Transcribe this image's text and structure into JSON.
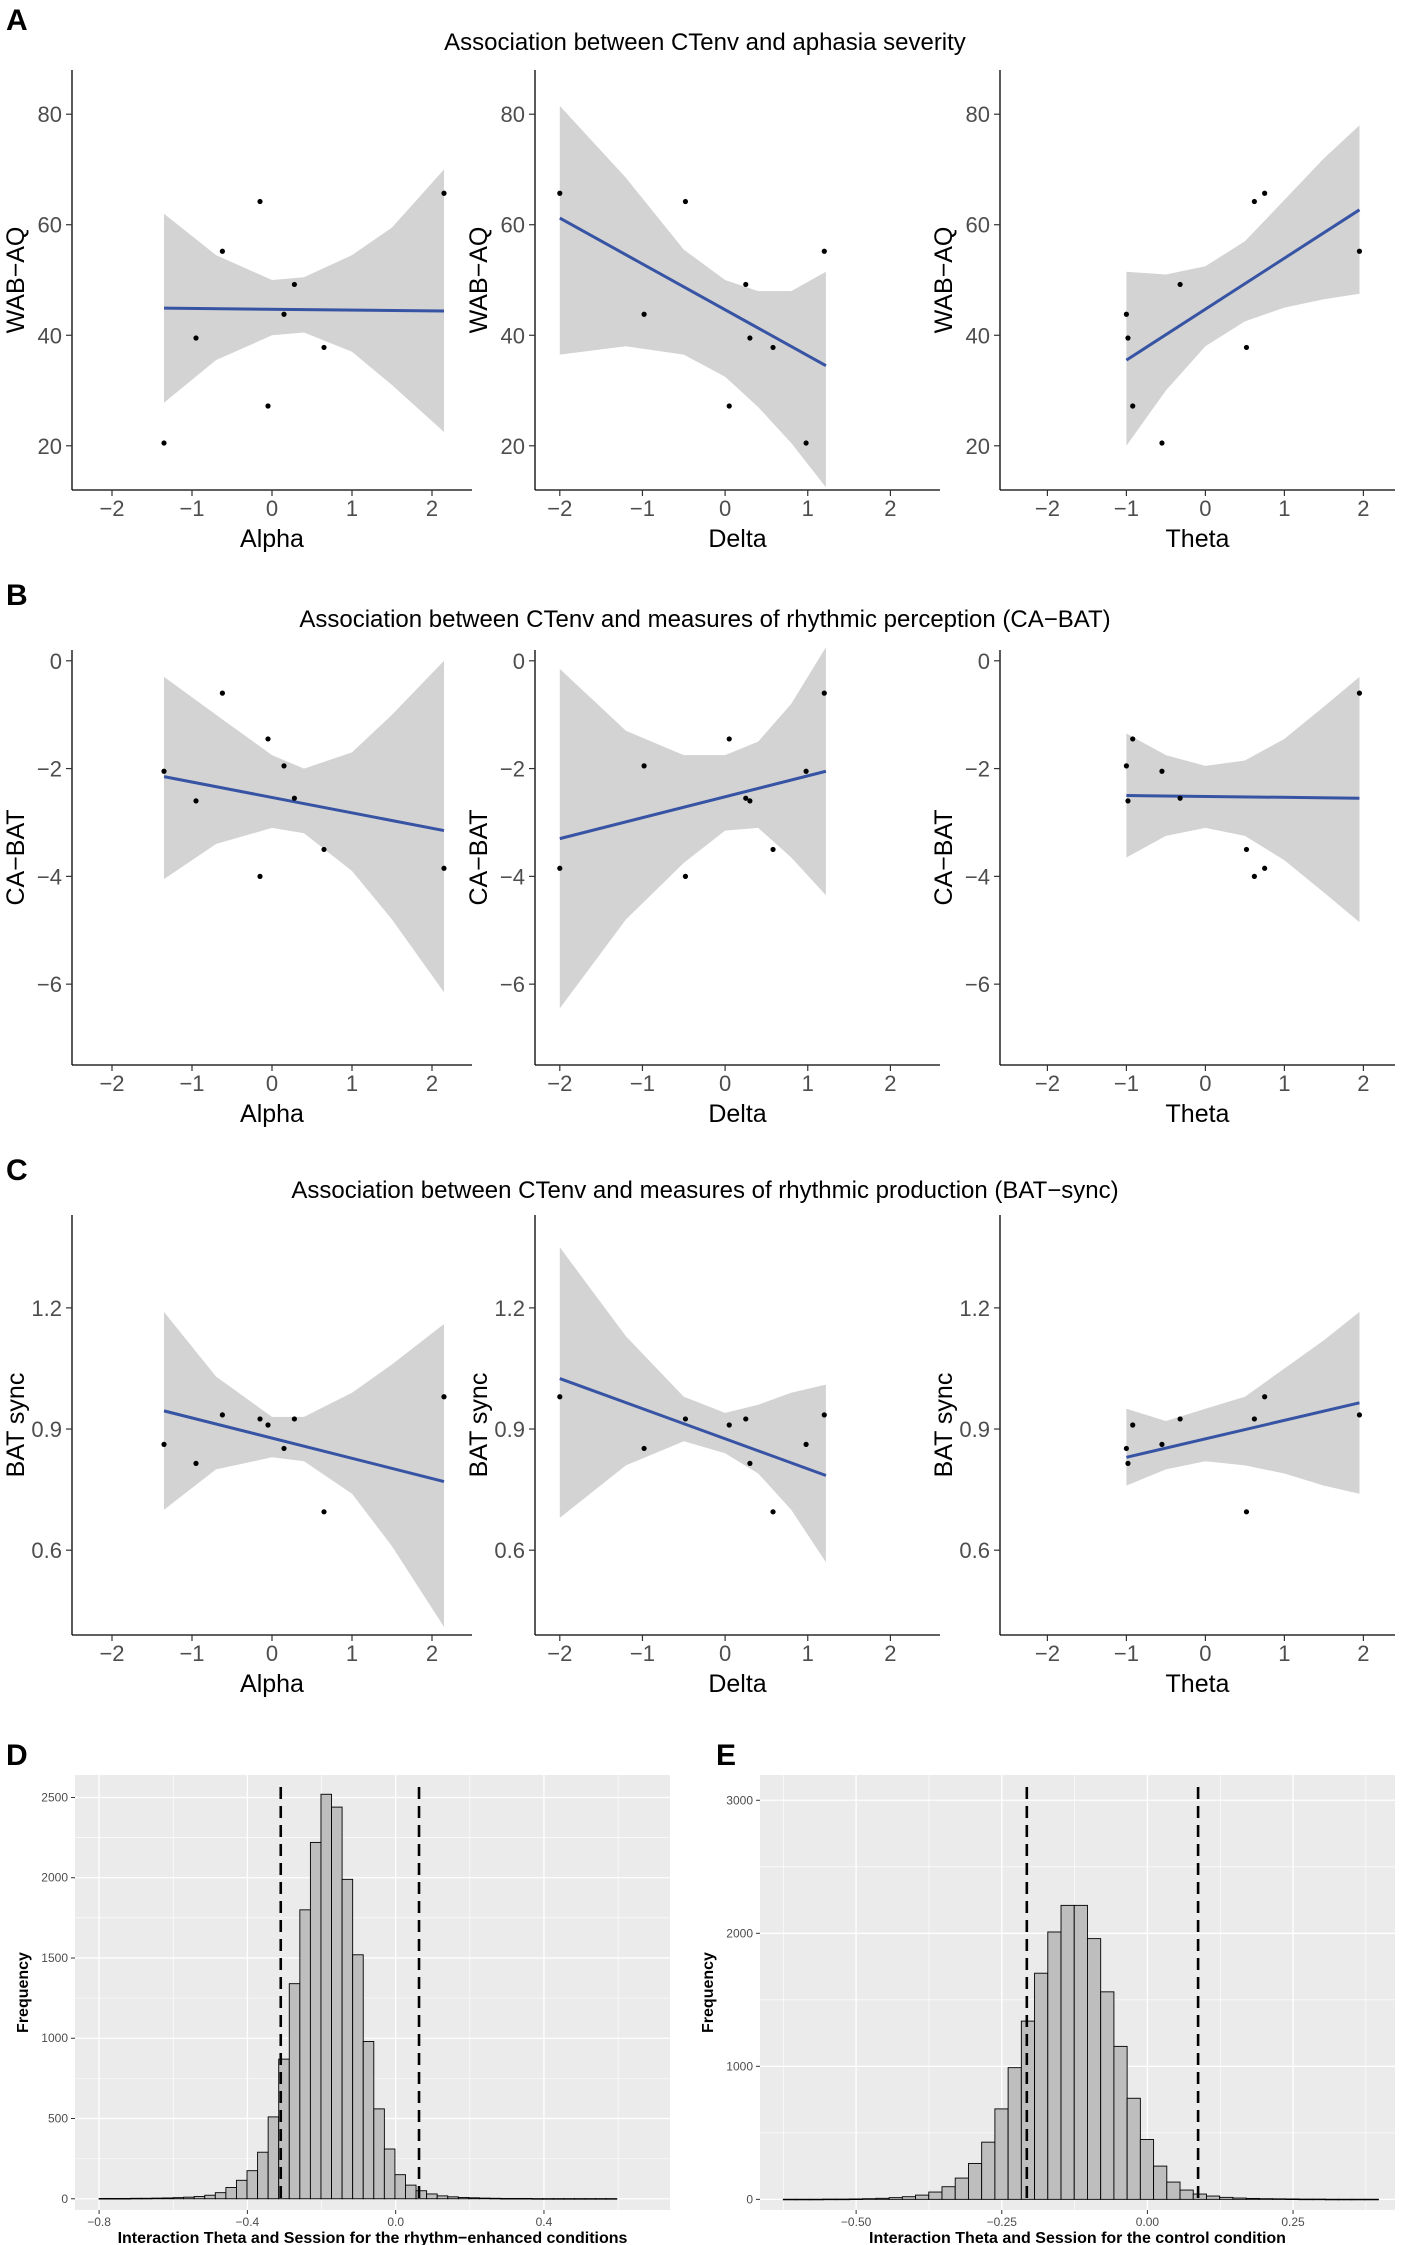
{
  "figure": {
    "rows": [
      {
        "letter": "A",
        "title": "Association between CTenv and aphasia severity"
      },
      {
        "letter": "B",
        "title": "Association between CTenv and measures of rhythmic perception (CA−BAT)"
      },
      {
        "letter": "C",
        "title": "Association between CTenv and measures of rhythmic production (BAT−sync)"
      }
    ],
    "hist_letters": [
      "D",
      "E"
    ]
  },
  "colors": {
    "fit_line": "#3753a4",
    "ci_band": "#d3d3d3",
    "point": "#000000",
    "hist_bg": "#ebebeb",
    "hist_grid": "#ffffff",
    "bar_fill": "#bebebe",
    "bar_stroke": "#000000"
  },
  "chart_data": [
    {
      "id": "A1",
      "type": "scatter",
      "row": "A",
      "xlabel": "Alpha",
      "ylabel": "WAB−AQ",
      "xlim": [
        -2.5,
        2.5
      ],
      "ylim": [
        12,
        88
      ],
      "xticks": [
        -2,
        -1,
        0,
        1,
        2
      ],
      "xtick_labels": [
        "−2",
        "−1",
        "0",
        "1",
        "2"
      ],
      "yticks": [
        20,
        40,
        60,
        80
      ],
      "ytick_labels": [
        "20",
        "40",
        "60",
        "80"
      ],
      "points": [
        [
          -1.35,
          20.5
        ],
        [
          -0.95,
          39.5
        ],
        [
          -0.62,
          55.2
        ],
        [
          -0.15,
          64.2
        ],
        [
          -0.05,
          27.2
        ],
        [
          0.15,
          43.8
        ],
        [
          0.28,
          49.2
        ],
        [
          0.65,
          37.8
        ],
        [
          2.15,
          65.7
        ]
      ],
      "fit": [
        [
          -1.35,
          44.9
        ],
        [
          2.15,
          44.4
        ]
      ],
      "ci": {
        "x": [
          -1.35,
          -0.7,
          0.0,
          0.4,
          1.0,
          1.5,
          2.15
        ],
        "lower": [
          27.8,
          35.5,
          40.0,
          40.5,
          37.0,
          31.0,
          22.5
        ],
        "upper": [
          62.0,
          54.5,
          50.0,
          50.5,
          54.5,
          59.5,
          70.0
        ]
      }
    },
    {
      "id": "A2",
      "type": "scatter",
      "row": "A",
      "xlabel": "Delta",
      "ylabel": "WAB−AQ",
      "xlim": [
        -2.3,
        2.6
      ],
      "ylim": [
        12,
        88
      ],
      "xticks": [
        -2,
        -1,
        0,
        1,
        2
      ],
      "xtick_labels": [
        "−2",
        "−1",
        "0",
        "1",
        "2"
      ],
      "yticks": [
        20,
        40,
        60,
        80
      ],
      "ytick_labels": [
        "20",
        "40",
        "60",
        "80"
      ],
      "points": [
        [
          -2.0,
          65.7
        ],
        [
          -0.98,
          43.8
        ],
        [
          -0.48,
          64.2
        ],
        [
          0.05,
          27.2
        ],
        [
          0.25,
          49.2
        ],
        [
          0.3,
          39.5
        ],
        [
          0.58,
          37.8
        ],
        [
          0.98,
          20.5
        ],
        [
          1.2,
          55.2
        ]
      ],
      "fit": [
        [
          -2.0,
          61.2
        ],
        [
          1.22,
          34.5
        ]
      ],
      "ci": {
        "x": [
          -2.0,
          -1.2,
          -0.5,
          0.0,
          0.4,
          0.8,
          1.22
        ],
        "lower": [
          36.5,
          38.0,
          36.5,
          32.5,
          27.0,
          20.5,
          12.5
        ],
        "upper": [
          81.5,
          68.5,
          55.5,
          50.0,
          48.0,
          48.0,
          51.5
        ]
      }
    },
    {
      "id": "A3",
      "type": "scatter",
      "row": "A",
      "xlabel": "Theta",
      "ylabel": "WAB−AQ",
      "xlim": [
        -2.6,
        2.4
      ],
      "ylim": [
        12,
        88
      ],
      "xticks": [
        -2,
        -1,
        0,
        1,
        2
      ],
      "xtick_labels": [
        "−2",
        "−1",
        "0",
        "1",
        "2"
      ],
      "yticks": [
        20,
        40,
        60,
        80
      ],
      "ytick_labels": [
        "20",
        "40",
        "60",
        "80"
      ],
      "points": [
        [
          -1.0,
          43.8
        ],
        [
          -0.98,
          39.5
        ],
        [
          -0.92,
          27.2
        ],
        [
          -0.55,
          20.5
        ],
        [
          -0.32,
          49.2
        ],
        [
          0.52,
          37.8
        ],
        [
          0.62,
          64.2
        ],
        [
          0.75,
          65.7
        ],
        [
          1.95,
          55.2
        ]
      ],
      "fit": [
        [
          -1.0,
          35.5
        ],
        [
          1.95,
          62.7
        ]
      ],
      "ci": {
        "x": [
          -1.0,
          -0.5,
          0.0,
          0.5,
          1.0,
          1.5,
          1.95
        ],
        "lower": [
          20.0,
          30.0,
          38.0,
          42.5,
          45.0,
          46.5,
          47.5
        ],
        "upper": [
          51.5,
          51.0,
          52.5,
          57.0,
          64.5,
          72.0,
          78.0
        ]
      }
    },
    {
      "id": "B1",
      "type": "scatter",
      "row": "B",
      "xlabel": "Alpha",
      "ylabel": "CA−BAT",
      "xlim": [
        -2.5,
        2.5
      ],
      "ylim": [
        -7.5,
        0.2
      ],
      "xticks": [
        -2,
        -1,
        0,
        1,
        2
      ],
      "xtick_labels": [
        "−2",
        "−1",
        "0",
        "1",
        "2"
      ],
      "yticks": [
        -6,
        -4,
        -2,
        0
      ],
      "ytick_labels": [
        "−6",
        "−4",
        "−2",
        "0"
      ],
      "points": [
        [
          -1.35,
          -2.05
        ],
        [
          -0.95,
          -2.6
        ],
        [
          -0.62,
          -0.6
        ],
        [
          -0.15,
          -4.0
        ],
        [
          -0.05,
          -1.45
        ],
        [
          0.15,
          -1.95
        ],
        [
          0.28,
          -2.55
        ],
        [
          0.65,
          -3.5
        ],
        [
          2.15,
          -3.85
        ]
      ],
      "fit": [
        [
          -1.35,
          -2.15
        ],
        [
          2.15,
          -3.15
        ]
      ],
      "ci": {
        "x": [
          -1.35,
          -0.7,
          0.0,
          0.4,
          1.0,
          1.5,
          2.15
        ],
        "lower": [
          -4.05,
          -3.4,
          -3.1,
          -3.2,
          -3.9,
          -4.8,
          -6.15
        ],
        "upper": [
          -0.3,
          -1.0,
          -1.75,
          -2.0,
          -1.7,
          -1.0,
          0.0
        ]
      }
    },
    {
      "id": "B2",
      "type": "scatter",
      "row": "B",
      "xlabel": "Delta",
      "ylabel": "CA−BAT",
      "xlim": [
        -2.3,
        2.6
      ],
      "ylim": [
        -7.5,
        0.2
      ],
      "xticks": [
        -2,
        -1,
        0,
        1,
        2
      ],
      "xtick_labels": [
        "−2",
        "−1",
        "0",
        "1",
        "2"
      ],
      "yticks": [
        -6,
        -4,
        -2,
        0
      ],
      "ytick_labels": [
        "−6",
        "−4",
        "−2",
        "0"
      ],
      "points": [
        [
          -2.0,
          -3.85
        ],
        [
          -0.98,
          -1.95
        ],
        [
          -0.48,
          -4.0
        ],
        [
          0.05,
          -1.45
        ],
        [
          0.25,
          -2.55
        ],
        [
          0.3,
          -2.6
        ],
        [
          0.58,
          -3.5
        ],
        [
          0.98,
          -2.05
        ],
        [
          1.2,
          -0.6
        ]
      ],
      "fit": [
        [
          -2.0,
          -3.3
        ],
        [
          1.22,
          -2.05
        ]
      ],
      "ci": {
        "x": [
          -2.0,
          -1.2,
          -0.5,
          0.0,
          0.4,
          0.8,
          1.22
        ],
        "lower": [
          -6.45,
          -4.8,
          -3.75,
          -3.15,
          -3.1,
          -3.65,
          -4.35
        ],
        "upper": [
          -0.15,
          -1.3,
          -1.75,
          -1.75,
          -1.5,
          -0.8,
          0.25
        ]
      }
    },
    {
      "id": "B3",
      "type": "scatter",
      "row": "B",
      "xlabel": "Theta",
      "ylabel": "CA−BAT",
      "xlim": [
        -2.6,
        2.4
      ],
      "ylim": [
        -7.5,
        0.2
      ],
      "xticks": [
        -2,
        -1,
        0,
        1,
        2
      ],
      "xtick_labels": [
        "−2",
        "−1",
        "0",
        "1",
        "2"
      ],
      "yticks": [
        -6,
        -4,
        -2,
        0
      ],
      "ytick_labels": [
        "−6",
        "−4",
        "−2",
        "0"
      ],
      "points": [
        [
          -1.0,
          -1.95
        ],
        [
          -0.98,
          -2.6
        ],
        [
          -0.92,
          -1.45
        ],
        [
          -0.55,
          -2.05
        ],
        [
          -0.32,
          -2.55
        ],
        [
          0.52,
          -3.5
        ],
        [
          0.62,
          -4.0
        ],
        [
          0.75,
          -3.85
        ],
        [
          1.95,
          -0.6
        ]
      ],
      "fit": [
        [
          -1.0,
          -2.5
        ],
        [
          1.95,
          -2.55
        ]
      ],
      "ci": {
        "x": [
          -1.0,
          -0.5,
          0.0,
          0.5,
          1.0,
          1.5,
          1.95
        ],
        "lower": [
          -3.65,
          -3.25,
          -3.1,
          -3.25,
          -3.7,
          -4.3,
          -4.85
        ],
        "upper": [
          -1.35,
          -1.75,
          -1.95,
          -1.85,
          -1.45,
          -0.85,
          -0.3
        ]
      }
    },
    {
      "id": "C1",
      "type": "scatter",
      "row": "C",
      "xlabel": "Alpha",
      "ylabel": "BAT sync",
      "xlim": [
        -2.5,
        2.5
      ],
      "ylim": [
        0.39,
        1.43
      ],
      "xticks": [
        -2,
        -1,
        0,
        1,
        2
      ],
      "xtick_labels": [
        "−2",
        "−1",
        "0",
        "1",
        "2"
      ],
      "yticks": [
        0.6,
        0.9,
        1.2
      ],
      "ytick_labels": [
        "0.6",
        "0.9",
        "1.2"
      ],
      "points": [
        [
          -1.35,
          0.862
        ],
        [
          -0.95,
          0.815
        ],
        [
          -0.62,
          0.935
        ],
        [
          -0.15,
          0.925
        ],
        [
          -0.05,
          0.91
        ],
        [
          0.15,
          0.852
        ],
        [
          0.28,
          0.925
        ],
        [
          0.65,
          0.695
        ],
        [
          2.15,
          0.98
        ]
      ],
      "fit": [
        [
          -1.35,
          0.945
        ],
        [
          2.15,
          0.77
        ]
      ],
      "ci": {
        "x": [
          -1.35,
          -0.7,
          0.0,
          0.4,
          1.0,
          1.5,
          2.15
        ],
        "lower": [
          0.7,
          0.8,
          0.83,
          0.82,
          0.74,
          0.61,
          0.41
        ],
        "upper": [
          1.19,
          1.03,
          0.93,
          0.93,
          0.99,
          1.06,
          1.16
        ]
      }
    },
    {
      "id": "C2",
      "type": "scatter",
      "row": "C",
      "xlabel": "Delta",
      "ylabel": "BAT sync",
      "xlim": [
        -2.3,
        2.6
      ],
      "ylim": [
        0.39,
        1.43
      ],
      "xticks": [
        -2,
        -1,
        0,
        1,
        2
      ],
      "xtick_labels": [
        "−2",
        "−1",
        "0",
        "1",
        "2"
      ],
      "yticks": [
        0.6,
        0.9,
        1.2
      ],
      "ytick_labels": [
        "0.6",
        "0.9",
        "1.2"
      ],
      "points": [
        [
          -2.0,
          0.98
        ],
        [
          -0.98,
          0.852
        ],
        [
          -0.48,
          0.925
        ],
        [
          0.05,
          0.91
        ],
        [
          0.25,
          0.925
        ],
        [
          0.3,
          0.815
        ],
        [
          0.58,
          0.695
        ],
        [
          0.98,
          0.862
        ],
        [
          1.2,
          0.935
        ]
      ],
      "fit": [
        [
          -2.0,
          1.025
        ],
        [
          1.22,
          0.785
        ]
      ],
      "ci": {
        "x": [
          -2.0,
          -1.2,
          -0.5,
          0.0,
          0.4,
          0.8,
          1.22
        ],
        "lower": [
          0.68,
          0.81,
          0.87,
          0.84,
          0.79,
          0.7,
          0.57
        ],
        "upper": [
          1.35,
          1.13,
          0.98,
          0.94,
          0.96,
          0.99,
          1.01
        ]
      }
    },
    {
      "id": "C3",
      "type": "scatter",
      "row": "C",
      "xlabel": "Theta",
      "ylabel": "BAT sync",
      "xlim": [
        -2.6,
        2.4
      ],
      "ylim": [
        0.39,
        1.43
      ],
      "xticks": [
        -2,
        -1,
        0,
        1,
        2
      ],
      "xtick_labels": [
        "−2",
        "−1",
        "0",
        "1",
        "2"
      ],
      "yticks": [
        0.6,
        0.9,
        1.2
      ],
      "ytick_labels": [
        "0.6",
        "0.9",
        "1.2"
      ],
      "points": [
        [
          -1.0,
          0.852
        ],
        [
          -0.98,
          0.815
        ],
        [
          -0.92,
          0.91
        ],
        [
          -0.55,
          0.862
        ],
        [
          -0.32,
          0.925
        ],
        [
          0.52,
          0.695
        ],
        [
          0.62,
          0.925
        ],
        [
          0.75,
          0.98
        ],
        [
          1.95,
          0.935
        ]
      ],
      "fit": [
        [
          -1.0,
          0.83
        ],
        [
          1.95,
          0.965
        ]
      ],
      "ci": {
        "x": [
          -1.0,
          -0.5,
          0.0,
          0.5,
          1.0,
          1.5,
          1.95
        ],
        "lower": [
          0.76,
          0.8,
          0.82,
          0.81,
          0.79,
          0.76,
          0.74
        ],
        "upper": [
          0.95,
          0.92,
          0.95,
          0.98,
          1.05,
          1.12,
          1.19
        ]
      }
    },
    {
      "id": "D",
      "type": "bar",
      "subtype": "histogram",
      "xlabel": "Interaction Theta and Session for the rhythm−enhanced conditions",
      "ylabel": "Frequency",
      "xlim": [
        -0.865,
        0.74
      ],
      "ylim": [
        -70,
        2640
      ],
      "xticks": [
        -0.8,
        -0.4,
        0.0,
        0.4
      ],
      "xtick_labels": [
        "−0.8",
        "−0.4",
        "0.0",
        "0.4"
      ],
      "yticks": [
        0,
        500,
        1000,
        1500,
        2000,
        2500
      ],
      "ytick_labels": [
        "0",
        "500",
        "1000",
        "1500",
        "2000",
        "2500"
      ],
      "bin_start": -0.8,
      "bin_width": 0.0285,
      "values": [
        2,
        2,
        2,
        3,
        3,
        4,
        5,
        7,
        10,
        14,
        22,
        38,
        70,
        115,
        175,
        290,
        510,
        870,
        1340,
        1800,
        2220,
        2520,
        2440,
        1990,
        1520,
        980,
        560,
        310,
        150,
        85,
        50,
        30,
        18,
        12,
        8,
        6,
        4,
        3,
        2,
        2,
        2,
        1,
        1,
        1,
        1,
        1,
        1,
        1,
        1
      ],
      "ci_lines": [
        -0.31,
        0.063
      ]
    },
    {
      "id": "E",
      "type": "bar",
      "subtype": "histogram",
      "xlabel": "Interaction Theta and Session for the control condition",
      "ylabel": "Frequency",
      "xlim": [
        -0.665,
        0.425
      ],
      "ylim": [
        -80,
        3190
      ],
      "xticks": [
        -0.5,
        -0.25,
        0.0,
        0.25
      ],
      "xtick_labels": [
        "−0.50",
        "−0.25",
        "0.00",
        "0.25"
      ],
      "yticks": [
        0,
        1000,
        2000,
        3000
      ],
      "ytick_labels": [
        "0",
        "1000",
        "2000",
        "3000"
      ],
      "bin_start": -0.625,
      "bin_width": 0.0227,
      "values": [
        1,
        1,
        1,
        2,
        2,
        3,
        5,
        8,
        13,
        20,
        32,
        55,
        95,
        160,
        270,
        430,
        680,
        990,
        1340,
        1700,
        2010,
        2210,
        2210,
        1960,
        1560,
        1150,
        760,
        450,
        250,
        130,
        70,
        40,
        25,
        15,
        10,
        7,
        5,
        4,
        3,
        2,
        2,
        1,
        1,
        1,
        1
      ],
      "ci_lines": [
        -0.207,
        0.087
      ]
    }
  ]
}
